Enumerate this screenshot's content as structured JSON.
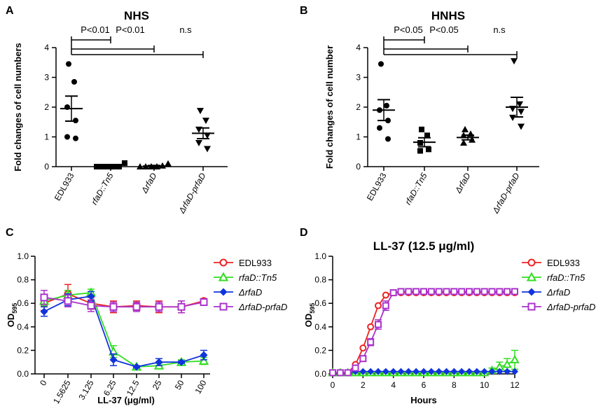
{
  "figure": {
    "panels": [
      "A",
      "B",
      "C",
      "D"
    ]
  },
  "chart_data": [
    {
      "panel": "A",
      "type": "scatter",
      "title": "NHS",
      "xlabel": "",
      "ylabel": "Fold changes of cell numbers",
      "ylim": [
        0,
        4
      ],
      "yticks": [
        "0",
        "1",
        "2",
        "3",
        "4"
      ],
      "categories": [
        "EDL933",
        "rfaD::Tn5",
        "ΔrfaD",
        "ΔrfaD-prfaD"
      ],
      "category_italic": [
        false,
        true,
        true,
        true
      ],
      "markers": [
        "circle",
        "square",
        "triangle-up",
        "triangle-down"
      ],
      "points": [
        [
          3.45,
          2.85,
          2.0,
          1.55,
          1.0,
          0.95
        ],
        [
          0.0,
          0.0,
          0.0,
          0.0,
          0.0,
          0.12
        ],
        [
          0.0,
          0.0,
          0.0,
          0.0,
          0.03,
          0.1
        ],
        [
          1.88,
          1.55,
          1.25,
          1.05,
          0.8,
          0.6
        ]
      ],
      "mean": [
        1.95,
        0.02,
        0.02,
        1.12
      ],
      "sem": [
        0.42,
        0.03,
        0.02,
        0.18
      ],
      "annotations": [
        {
          "from": 0,
          "to": 1,
          "text": "P<0.01",
          "y": 4.65
        },
        {
          "from": 0,
          "to": 2,
          "text": "P<0.01",
          "y": 4.0
        },
        {
          "from": 0,
          "to": 3,
          "text": "n.s",
          "y": 3.7
        }
      ]
    },
    {
      "panel": "B",
      "type": "scatter",
      "title": "HNHS",
      "xlabel": "",
      "ylabel": "Fold changes of cell number",
      "ylim": [
        0,
        4
      ],
      "yticks": [
        "0",
        "1",
        "2",
        "3",
        "4"
      ],
      "categories": [
        "EDL933",
        "rfaD::Tn5",
        "ΔrfaD",
        "ΔrfaD-prfaD"
      ],
      "category_italic": [
        false,
        true,
        true,
        true
      ],
      "markers": [
        "circle",
        "square",
        "triangle-up",
        "triangle-down"
      ],
      "points": [
        [
          3.45,
          2.05,
          1.9,
          1.55,
          1.3,
          0.93
        ],
        [
          1.25,
          1.05,
          0.8,
          0.58,
          0.53
        ],
        [
          1.25,
          1.1,
          1.05,
          0.9,
          0.8
        ],
        [
          3.55,
          2.1,
          1.95,
          1.85,
          1.65,
          1.35
        ]
      ],
      "mean": [
        1.9,
        0.82,
        0.98,
        2.0
      ],
      "sem": [
        0.35,
        0.15,
        0.08,
        0.33
      ],
      "annotations": [
        {
          "from": 0,
          "to": 1,
          "text": "P<0.05",
          "y": 4.65
        },
        {
          "from": 0,
          "to": 2,
          "text": "P<0.05",
          "y": 4.0
        },
        {
          "from": 0,
          "to": 3,
          "text": "n.s",
          "y": 3.7
        }
      ]
    },
    {
      "panel": "C",
      "type": "line",
      "title": "",
      "xlabel": "LL-37 (μg/ml)",
      "ylabel": "OD",
      "ylabel_sub": "595",
      "ylim": [
        0,
        1.0
      ],
      "yticks": [
        "0.0",
        "0.2",
        "0.4",
        "0.6",
        "0.8",
        "1.0"
      ],
      "categories": [
        "0",
        "1.5625",
        "3.125",
        "6.25",
        "12.5",
        "25",
        "50",
        "100"
      ],
      "series": [
        {
          "name": "EDL933",
          "italic": false,
          "color": "#ee2222",
          "marker": "circle-open",
          "values": [
            0.6,
            0.68,
            0.6,
            0.57,
            0.58,
            0.57,
            0.57,
            0.62
          ],
          "err": [
            0.06,
            0.08,
            0.05,
            0.05,
            0.04,
            0.05,
            0.05,
            0.02
          ]
        },
        {
          "name": "rfaD::Tn5",
          "italic": true,
          "color": "#33dd22",
          "marker": "triangle-open",
          "values": [
            0.62,
            0.67,
            0.69,
            0.19,
            0.06,
            0.07,
            0.1,
            0.11
          ],
          "err": [
            0.04,
            0.04,
            0.03,
            0.05,
            0.01,
            0.02,
            0.02,
            0.03
          ]
        },
        {
          "name": "ΔrfaD",
          "italic": true,
          "color": "#1133dd",
          "marker": "diamond-filled",
          "values": [
            0.53,
            0.63,
            0.66,
            0.12,
            0.06,
            0.1,
            0.1,
            0.16
          ],
          "err": [
            0.04,
            0.05,
            0.04,
            0.05,
            0.01,
            0.03,
            0.01,
            0.04
          ]
        },
        {
          "name": "ΔrfaD-prfaD",
          "italic": true,
          "color": "#aa33cc",
          "marker": "square-open",
          "values": [
            0.65,
            0.62,
            0.58,
            0.57,
            0.57,
            0.57,
            0.57,
            0.61
          ],
          "err": [
            0.06,
            0.05,
            0.05,
            0.04,
            0.04,
            0.04,
            0.05,
            0.02
          ]
        }
      ],
      "legend": "right"
    },
    {
      "panel": "D",
      "type": "line",
      "title": "LL-37 (12.5 μg/ml)",
      "xlabel": "Hours",
      "ylabel": "OD",
      "ylabel_sub": "595",
      "ylim": [
        0,
        1.0
      ],
      "xlim": [
        0,
        12
      ],
      "xticks": [
        "0",
        "2",
        "4",
        "6",
        "8",
        "10",
        "12"
      ],
      "yticks": [
        "0.0",
        "0.2",
        "0.4",
        "0.6",
        "0.8",
        "1.0"
      ],
      "x": [
        0,
        0.5,
        1,
        1.5,
        2,
        2.5,
        3,
        3.5,
        4,
        4.5,
        5,
        5.5,
        6,
        6.5,
        7,
        7.5,
        8,
        8.5,
        9,
        9.5,
        10,
        10.5,
        11,
        11.5,
        12
      ],
      "series": [
        {
          "name": "EDL933",
          "italic": false,
          "color": "#ee2222",
          "marker": "circle-open",
          "values": [
            0.01,
            0.01,
            0.01,
            0.08,
            0.22,
            0.4,
            0.58,
            0.67,
            0.69,
            0.69,
            0.69,
            0.69,
            0.69,
            0.69,
            0.69,
            0.69,
            0.69,
            0.69,
            0.69,
            0.69,
            0.69,
            0.69,
            0.69,
            0.69,
            0.69
          ],
          "err": []
        },
        {
          "name": "rfaD::Tn5",
          "italic": true,
          "color": "#33dd22",
          "marker": "triangle-open",
          "values": [
            0.01,
            0.01,
            0.01,
            0.01,
            0.01,
            0.01,
            0.01,
            0.01,
            0.01,
            0.01,
            0.01,
            0.01,
            0.01,
            0.01,
            0.01,
            0.01,
            0.01,
            0.01,
            0.01,
            0.01,
            0.01,
            0.03,
            0.06,
            0.08,
            0.12
          ],
          "err": [
            0,
            0,
            0,
            0,
            0,
            0,
            0,
            0,
            0,
            0,
            0,
            0,
            0,
            0,
            0,
            0,
            0,
            0,
            0,
            0,
            0,
            0.02,
            0.04,
            0.05,
            0.08
          ]
        },
        {
          "name": "ΔrfaD",
          "italic": true,
          "color": "#1133dd",
          "marker": "diamond-filled",
          "values": [
            0.01,
            0.01,
            0.01,
            0.02,
            0.02,
            0.02,
            0.02,
            0.02,
            0.02,
            0.02,
            0.02,
            0.02,
            0.02,
            0.02,
            0.02,
            0.02,
            0.02,
            0.02,
            0.02,
            0.02,
            0.02,
            0.02,
            0.02,
            0.02,
            0.02
          ],
          "err": []
        },
        {
          "name": "ΔrfaD-prfaD",
          "italic": true,
          "color": "#aa33cc",
          "marker": "square-open",
          "values": [
            0.01,
            0.01,
            0.01,
            0.05,
            0.13,
            0.27,
            0.42,
            0.58,
            0.69,
            0.7,
            0.7,
            0.7,
            0.7,
            0.7,
            0.7,
            0.7,
            0.7,
            0.7,
            0.7,
            0.7,
            0.7,
            0.7,
            0.7,
            0.7,
            0.7
          ],
          "err": [
            0,
            0,
            0,
            0.01,
            0.02,
            0.03,
            0.04,
            0.04,
            0.02,
            0.01,
            0.01,
            0.01,
            0.01,
            0.01,
            0.01,
            0.01,
            0.01,
            0.01,
            0.01,
            0.01,
            0.01,
            0.01,
            0.01,
            0.01,
            0.01
          ]
        }
      ],
      "legend": "right"
    }
  ]
}
